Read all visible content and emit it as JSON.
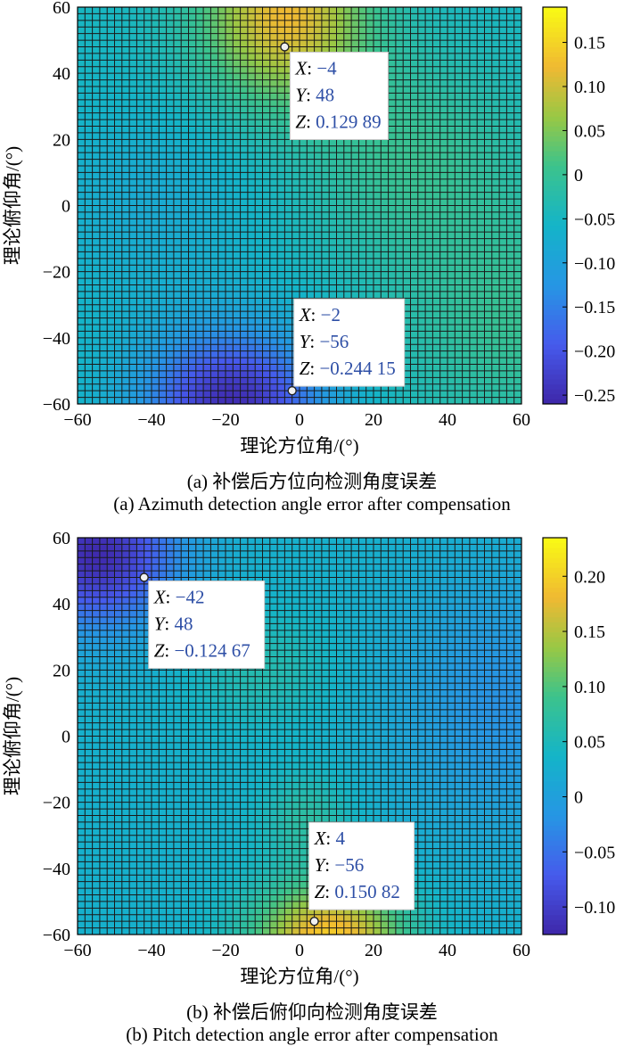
{
  "chart_data": [
    {
      "type": "heatmap",
      "panel": "a",
      "caption_cn": "(a) 补偿后方位向检测角度误差",
      "caption_en": "(a) Azimuth detection angle error after compensation",
      "xlabel": "理论方位角/(°)",
      "ylabel": "理论俯仰角/(°)",
      "xlim": [
        -60,
        60
      ],
      "ylim": [
        -60,
        60
      ],
      "xticks": [
        "−60",
        "−40",
        "−20",
        "0",
        "20",
        "40",
        "60"
      ],
      "yticks": [
        "−60",
        "−40",
        "−20",
        "0",
        "20",
        "40",
        "60"
      ],
      "colorbar": {
        "range": [
          -0.26,
          0.19
        ],
        "ticks": [
          "0.15",
          "0.10",
          "0.05",
          "0",
          "−0.05",
          "−0.10",
          "−0.15",
          "−0.20",
          "−0.25"
        ],
        "tick_values": [
          0.15,
          0.1,
          0.05,
          0,
          -0.05,
          -0.1,
          -0.15,
          -0.2,
          -0.25
        ]
      },
      "grid_step": 2,
      "colormap": "parula",
      "field_description": "z ≈ 0.13 near (−4, 48) rising toward the top-center, ≈ −0.24 near (−2, −56) falling toward the bottom-left, moderate values elsewhere",
      "datatips": [
        {
          "X": "−4",
          "Y": "48",
          "Z": "0.129 89",
          "x": -4,
          "y": 48,
          "z": 0.12989
        },
        {
          "X": "−2",
          "Y": "−56",
          "Z": "−0.244 15",
          "x": -2,
          "y": -56,
          "z": -0.24415
        }
      ]
    },
    {
      "type": "heatmap",
      "panel": "b",
      "caption_cn": "(b) 补偿后俯仰向检测角度误差",
      "caption_en": "(b) Pitch detection angle error after compensation",
      "xlabel": "理论方位角/(°)",
      "ylabel": "理论俯仰角/(°)",
      "xlim": [
        -60,
        60
      ],
      "ylim": [
        -60,
        60
      ],
      "xticks": [
        "−60",
        "−40",
        "−20",
        "0",
        "20",
        "40",
        "60"
      ],
      "yticks": [
        "−60",
        "−40",
        "−20",
        "0",
        "20",
        "40",
        "60"
      ],
      "colorbar": {
        "range": [
          -0.125,
          0.235
        ],
        "ticks": [
          "0.20",
          "0.15",
          "0.10",
          "0.05",
          "0",
          "−0.05",
          "−0.10"
        ],
        "tick_values": [
          0.2,
          0.15,
          0.1,
          0.05,
          0,
          -0.05,
          -0.1
        ]
      },
      "grid_step": 2,
      "colormap": "parula",
      "field_description": "z ≈ −0.12 in the top-left corner, ≈ 0.15 near (4, −56) rising along the bottom-center, moderate values elsewhere",
      "datatips": [
        {
          "X": "−42",
          "Y": "48",
          "Z": "−0.124 67",
          "x": -42,
          "y": 48,
          "z": -0.12467
        },
        {
          "X": "4",
          "Y": "−56",
          "Z": "0.150 82",
          "x": 4,
          "y": -56,
          "z": 0.15082
        }
      ]
    }
  ]
}
